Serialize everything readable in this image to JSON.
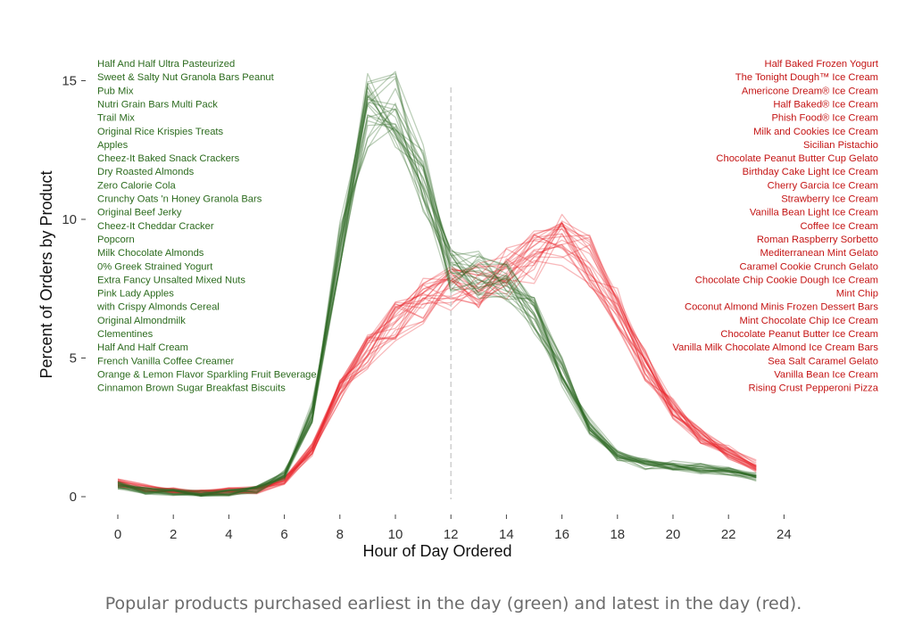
{
  "caption": "Popular products purchased earliest in the day (green) and latest in the day (red).",
  "colors": {
    "early": "#2e6b26",
    "late": "#e8262a",
    "early_label": "#2c6b1e",
    "late_label": "#c41414",
    "axis_text": "#333333",
    "dashed": "#c8c8c8"
  },
  "chart_data": {
    "type": "line",
    "xlabel": "Hour of Day Ordered",
    "ylabel": "Percent of Orders by Product",
    "xlim": [
      0,
      24
    ],
    "ylim": [
      0,
      16
    ],
    "xticks": [
      0,
      2,
      4,
      6,
      8,
      10,
      12,
      14,
      16,
      18,
      20,
      22,
      24
    ],
    "yticks": [
      0,
      5,
      10,
      15
    ],
    "vline": 12,
    "x": [
      0,
      1,
      2,
      3,
      4,
      5,
      6,
      7,
      8,
      9,
      10,
      11,
      12,
      13,
      14,
      15,
      16,
      17,
      18,
      19,
      20,
      21,
      22,
      23
    ],
    "green_base": [
      0.4,
      0.2,
      0.15,
      0.1,
      0.15,
      0.25,
      0.8,
      3.0,
      9.0,
      14.0,
      14.0,
      11.5,
      8.2,
      8.0,
      7.8,
      6.5,
      4.5,
      2.5,
      1.5,
      1.2,
      1.1,
      1.0,
      0.9,
      0.7
    ],
    "red_base": [
      0.5,
      0.3,
      0.2,
      0.15,
      0.2,
      0.25,
      0.6,
      1.7,
      3.8,
      5.3,
      6.3,
      7.0,
      7.5,
      7.7,
      8.1,
      8.7,
      9.2,
      8.5,
      6.8,
      4.7,
      3.2,
      2.2,
      1.6,
      1.1
    ],
    "series_early": [
      {
        "name": "Half And Half Ultra Pasteurized"
      },
      {
        "name": "Sweet & Salty Nut Granola Bars Peanut"
      },
      {
        "name": "Pub Mix"
      },
      {
        "name": "Nutri Grain Bars Multi Pack"
      },
      {
        "name": "Trail Mix"
      },
      {
        "name": "Original Rice Krispies Treats"
      },
      {
        "name": "Apples"
      },
      {
        "name": "Cheez-It Baked Snack Crackers"
      },
      {
        "name": "Dry Roasted Almonds"
      },
      {
        "name": "Zero Calorie Cola"
      },
      {
        "name": "Crunchy Oats 'n Honey Granola Bars"
      },
      {
        "name": "Original Beef Jerky"
      },
      {
        "name": "Cheez-It Cheddar Cracker"
      },
      {
        "name": "Popcorn"
      },
      {
        "name": "Milk Chocolate Almonds"
      },
      {
        "name": "0% Greek Strained Yogurt"
      },
      {
        "name": "Extra Fancy Unsalted Mixed Nuts"
      },
      {
        "name": "Pink Lady Apples"
      },
      {
        "name": "with Crispy Almonds Cereal"
      },
      {
        "name": "Original Almondmilk"
      },
      {
        "name": "Clementines"
      },
      {
        "name": "Half And Half Cream"
      },
      {
        "name": "French Vanilla Coffee Creamer"
      },
      {
        "name": "Orange & Lemon Flavor Sparkling Fruit Beverage"
      },
      {
        "name": "Cinnamon Brown Sugar Breakfast Biscuits"
      }
    ],
    "series_late": [
      {
        "name": "Half Baked Frozen Yogurt"
      },
      {
        "name": "The Tonight Dough™ Ice Cream"
      },
      {
        "name": "Americone Dream® Ice Cream"
      },
      {
        "name": "Half Baked® Ice Cream"
      },
      {
        "name": "Phish Food® Ice Cream"
      },
      {
        "name": "Milk and Cookies Ice Cream"
      },
      {
        "name": "Sicilian Pistachio"
      },
      {
        "name": "Chocolate Peanut Butter Cup Gelato"
      },
      {
        "name": "Birthday Cake Light Ice Cream"
      },
      {
        "name": "Cherry Garcia Ice Cream"
      },
      {
        "name": "Strawberry Ice Cream"
      },
      {
        "name": "Vanilla Bean Light Ice Cream"
      },
      {
        "name": "Coffee Ice Cream"
      },
      {
        "name": "Roman Raspberry Sorbetto"
      },
      {
        "name": "Mediterranean Mint Gelato"
      },
      {
        "name": "Caramel Cookie Crunch Gelato"
      },
      {
        "name": "Chocolate Chip Cookie Dough Ice Cream"
      },
      {
        "name": "Mint Chip"
      },
      {
        "name": "Coconut Almond Minis Frozen Dessert Bars"
      },
      {
        "name": "Mint Chocolate Chip Ice Cream"
      },
      {
        "name": "Chocolate Peanut Butter Ice Cream"
      },
      {
        "name": "Vanilla Milk Chocolate Almond Ice Cream Bars"
      },
      {
        "name": "Sea Salt Caramel Gelato"
      },
      {
        "name": "Vanilla Bean Ice Cream"
      },
      {
        "name": "Rising Crust Pepperoni Pizza"
      }
    ]
  }
}
